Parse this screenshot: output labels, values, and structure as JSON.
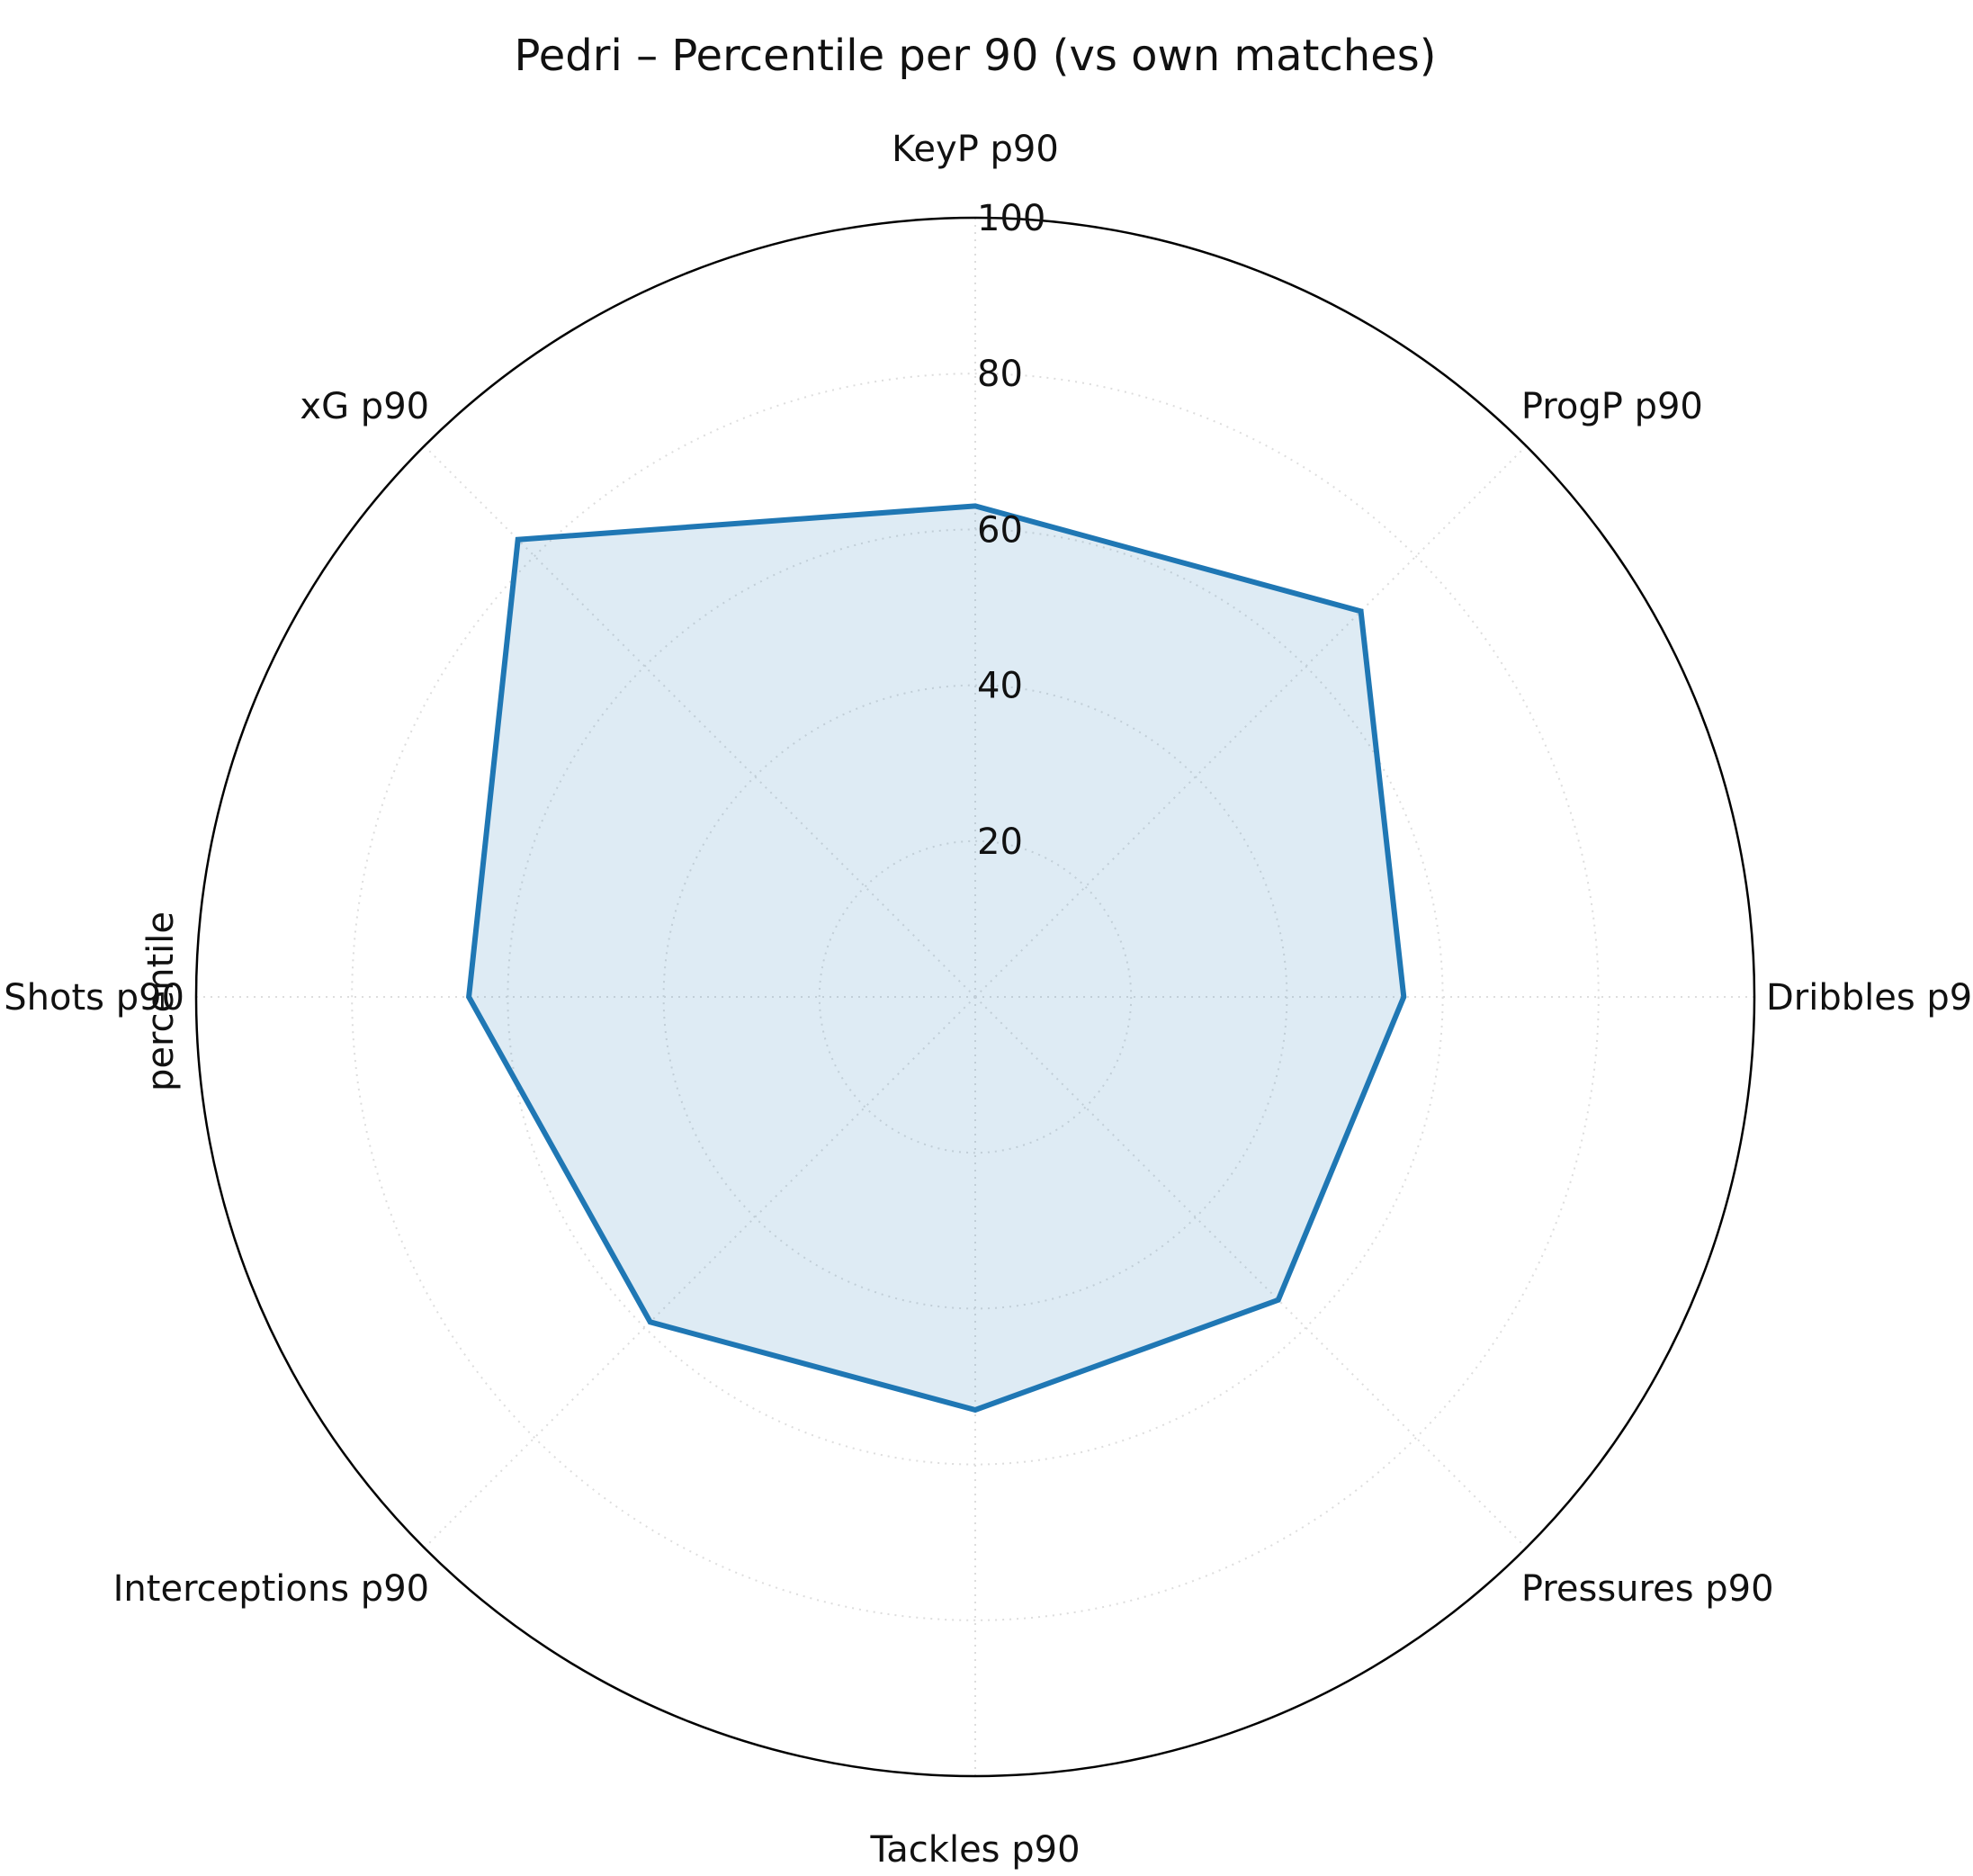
{
  "chart_data": {
    "type": "radar",
    "title": "Pedri – Percentile per 90 (vs own matches)",
    "ylabel": "percentile",
    "categories": [
      "KeyP p90",
      "ProgP p90",
      "Dribbles p90",
      "Pressures p90",
      "Tackles p90",
      "Interceptions p90",
      "Shots p90",
      "xG p90"
    ],
    "series": [
      {
        "values": [
          63,
          70,
          55,
          55,
          53,
          59,
          65,
          83
        ]
      }
    ],
    "rlim": [
      0,
      100
    ],
    "r_ticks": [
      20,
      40,
      60,
      80,
      100
    ],
    "grid": true,
    "colors": {
      "line": "#1f77b4",
      "fill": "#1f77b4",
      "grid": "#dddddd",
      "frame": "#000000"
    }
  }
}
